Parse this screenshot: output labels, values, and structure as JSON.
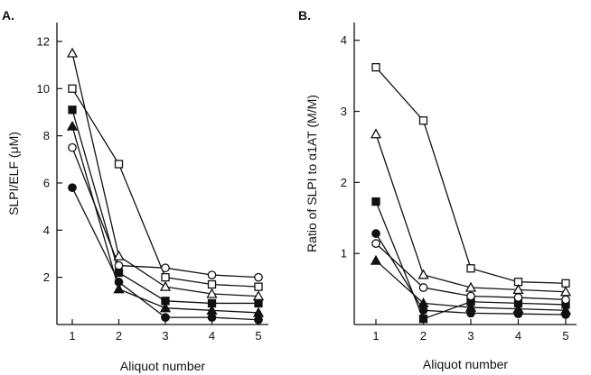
{
  "chart_data": [
    {
      "type": "line",
      "panel_label": "A.",
      "xlabel": "Aliquot number",
      "ylabel": "SLPI/ELF (μM)",
      "x": [
        1,
        2,
        3,
        4,
        5
      ],
      "xticks": [
        "1",
        "2",
        "3",
        "4",
        "5"
      ],
      "ylim": [
        0,
        12.8
      ],
      "yticks": [
        "2",
        "4",
        "6",
        "8",
        "10",
        "12"
      ],
      "ytick_values": [
        2,
        4,
        6,
        8,
        10,
        12
      ],
      "grid": false,
      "series": [
        {
          "marker": "open-triangle",
          "values": [
            11.5,
            2.9,
            1.6,
            1.3,
            1.2
          ]
        },
        {
          "marker": "open-square",
          "values": [
            10.0,
            6.8,
            2.0,
            1.7,
            1.6
          ]
        },
        {
          "marker": "filled-square",
          "values": [
            9.1,
            2.2,
            1.0,
            0.9,
            0.9
          ]
        },
        {
          "marker": "filled-triangle",
          "values": [
            8.4,
            1.5,
            0.7,
            0.6,
            0.5
          ]
        },
        {
          "marker": "open-circle",
          "values": [
            7.5,
            2.5,
            2.4,
            2.1,
            2.0
          ]
        },
        {
          "marker": "filled-circle",
          "values": [
            5.8,
            1.8,
            0.3,
            0.3,
            0.2
          ]
        }
      ]
    },
    {
      "type": "line",
      "panel_label": "B.",
      "xlabel": "Aliquot number",
      "ylabel": "Ratio of SLPI to α1AT (M/M)",
      "x": [
        1,
        2,
        3,
        4,
        5
      ],
      "xticks": [
        "1",
        "2",
        "3",
        "4",
        "5"
      ],
      "ylim": [
        0,
        4.25
      ],
      "yticks": [
        "1",
        "2",
        "3",
        "4"
      ],
      "ytick_values": [
        1,
        2,
        3,
        4
      ],
      "grid": false,
      "series": [
        {
          "marker": "open-square",
          "values": [
            3.62,
            2.87,
            0.79,
            0.6,
            0.58
          ]
        },
        {
          "marker": "open-triangle",
          "values": [
            2.68,
            0.7,
            0.52,
            0.49,
            0.46
          ]
        },
        {
          "marker": "filled-square",
          "values": [
            1.73,
            0.08,
            0.32,
            0.3,
            0.28
          ]
        },
        {
          "marker": "filled-circle",
          "values": [
            1.28,
            0.2,
            0.16,
            0.15,
            0.14
          ]
        },
        {
          "marker": "open-circle",
          "values": [
            1.14,
            0.52,
            0.4,
            0.38,
            0.35
          ]
        },
        {
          "marker": "filled-triangle",
          "values": [
            0.9,
            0.3,
            0.24,
            0.22,
            0.2
          ]
        }
      ]
    }
  ]
}
